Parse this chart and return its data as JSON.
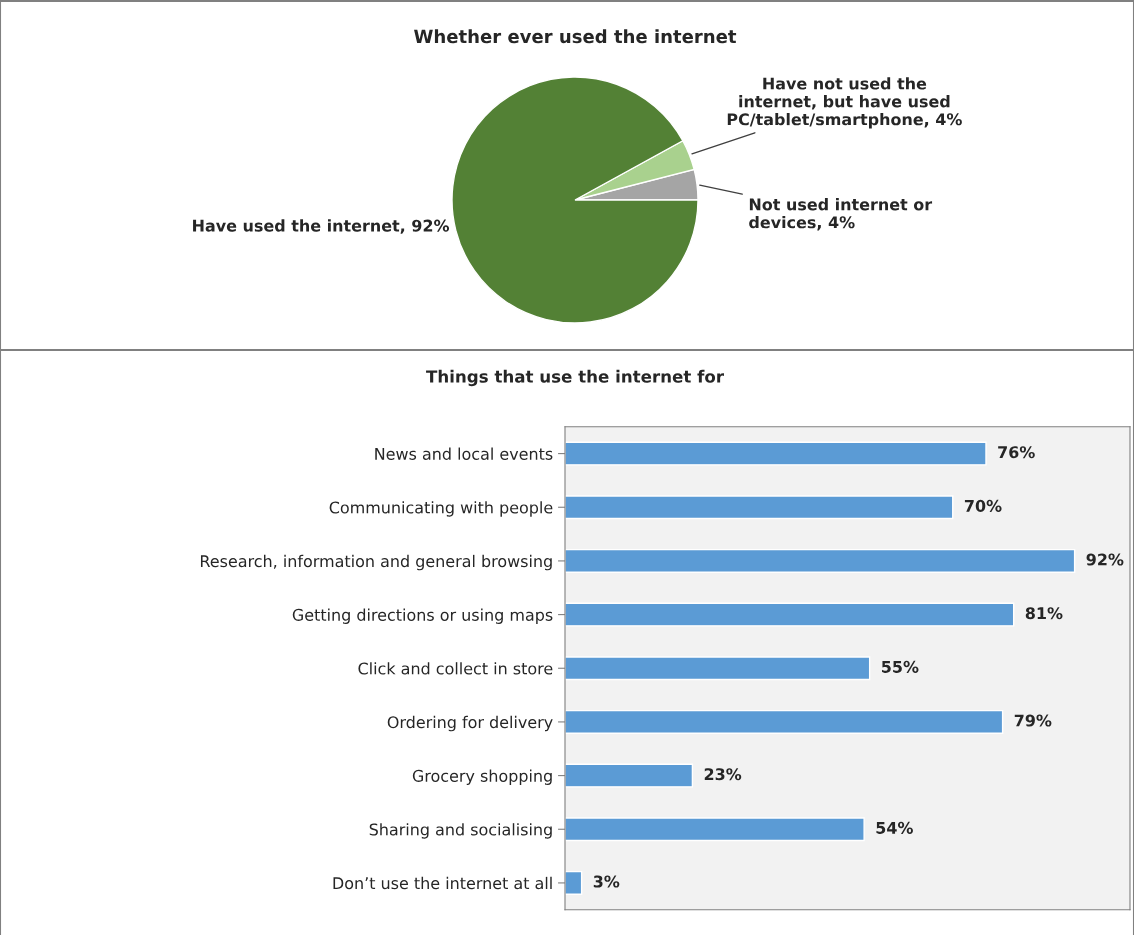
{
  "chart_data": [
    {
      "type": "pie",
      "title": "Whether ever used the internet",
      "categories": [
        "Not used internet or devices, 4%",
        "Have not used the internet, but have used PC/tablet/smartphone, 4%",
        "Have used the internet, 92%"
      ],
      "values": [
        4,
        4,
        92
      ],
      "colors": [
        "#a5a5a5",
        "#a9d18e",
        "#538135"
      ]
    },
    {
      "type": "bar",
      "orientation": "horizontal",
      "title": "Things that use the internet for",
      "categories": [
        "News and local events",
        "Communicating with people",
        "Research, information and general browsing",
        "Getting directions or using maps",
        "Click and collect in store",
        "Ordering for delivery",
        "Grocery shopping",
        "Sharing and socialising",
        "Don’t use the internet at all"
      ],
      "values": [
        76,
        70,
        92,
        81,
        55,
        79,
        23,
        54,
        3
      ],
      "value_labels": [
        "76%",
        "70%",
        "92%",
        "81%",
        "55%",
        "79%",
        "23%",
        "54%",
        "3%"
      ],
      "color": "#5b9bd5",
      "xlim": [
        0,
        102
      ]
    }
  ]
}
